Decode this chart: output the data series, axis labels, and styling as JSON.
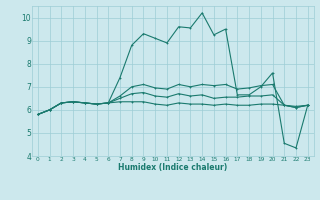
{
  "xlabel": "Humidex (Indice chaleur)",
  "xlim": [
    -0.5,
    23.5
  ],
  "ylim": [
    4,
    10.5
  ],
  "yticks": [
    4,
    5,
    6,
    7,
    8,
    9,
    10
  ],
  "xticks": [
    0,
    1,
    2,
    3,
    4,
    5,
    6,
    7,
    8,
    9,
    10,
    11,
    12,
    13,
    14,
    15,
    16,
    17,
    18,
    19,
    20,
    21,
    22,
    23
  ],
  "bg_color": "#cce8ed",
  "grid_color": "#9ecdd6",
  "line_color": "#1a7a6e",
  "lines": [
    [
      5.8,
      6.0,
      6.3,
      6.35,
      6.3,
      6.25,
      6.3,
      7.4,
      8.8,
      9.3,
      9.1,
      8.9,
      9.6,
      9.55,
      10.2,
      9.25,
      9.5,
      6.65,
      6.65,
      7.0,
      7.6,
      4.55,
      4.35,
      6.2
    ],
    [
      5.8,
      6.0,
      6.3,
      6.35,
      6.3,
      6.25,
      6.3,
      6.6,
      7.0,
      7.1,
      6.95,
      6.9,
      7.1,
      7.0,
      7.1,
      7.05,
      7.1,
      6.9,
      6.95,
      7.05,
      7.1,
      6.2,
      6.15,
      6.2
    ],
    [
      5.8,
      6.0,
      6.3,
      6.35,
      6.3,
      6.25,
      6.3,
      6.5,
      6.7,
      6.75,
      6.6,
      6.55,
      6.7,
      6.6,
      6.65,
      6.5,
      6.55,
      6.55,
      6.6,
      6.6,
      6.65,
      6.2,
      6.1,
      6.2
    ],
    [
      5.8,
      6.0,
      6.3,
      6.35,
      6.3,
      6.25,
      6.3,
      6.35,
      6.35,
      6.35,
      6.25,
      6.2,
      6.3,
      6.25,
      6.25,
      6.2,
      6.25,
      6.2,
      6.2,
      6.25,
      6.25,
      6.2,
      6.1,
      6.2
    ]
  ]
}
